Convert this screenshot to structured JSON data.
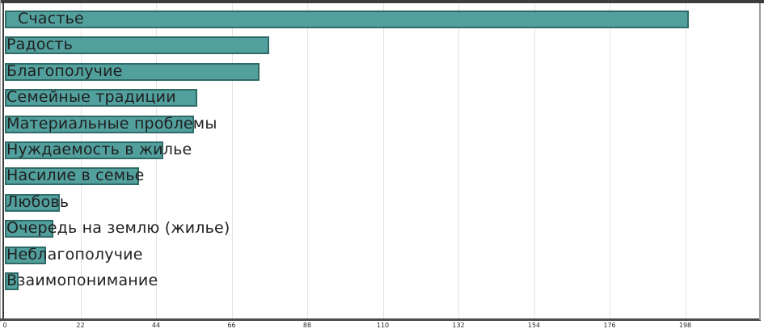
{
  "chart_data": {
    "type": "bar",
    "orientation": "horizontal",
    "title": "",
    "xlabel": "",
    "ylabel": "",
    "categories": [
      "Счастье",
      "Радость",
      "Благополучие",
      "Семейные традиции",
      "Материальные проблемы",
      "Нуждаемость в жилье",
      "Насилие в семье",
      "Любовь",
      "Очередь на землю (жилье)",
      "Неблагополучие",
      "Взаимопонимание"
    ],
    "values": [
      199,
      77,
      74,
      56,
      55,
      46,
      39,
      16,
      14,
      12,
      4
    ],
    "xlim": [
      0,
      220
    ],
    "x_ticks": [
      0,
      22,
      44,
      66,
      88,
      110,
      132,
      154,
      176,
      198
    ],
    "grid": true,
    "legend": false,
    "colors": {
      "bar_fill": "#52A09D",
      "bar_border": "#2F6B66",
      "gridline": "#E4E4E4",
      "axis_dark": "#3C3C3C",
      "axis_right": "#9B9B9B",
      "label_text": "#1F1F1F",
      "tick_text": "#2B2B2B",
      "background": "#FFFFFF"
    }
  }
}
